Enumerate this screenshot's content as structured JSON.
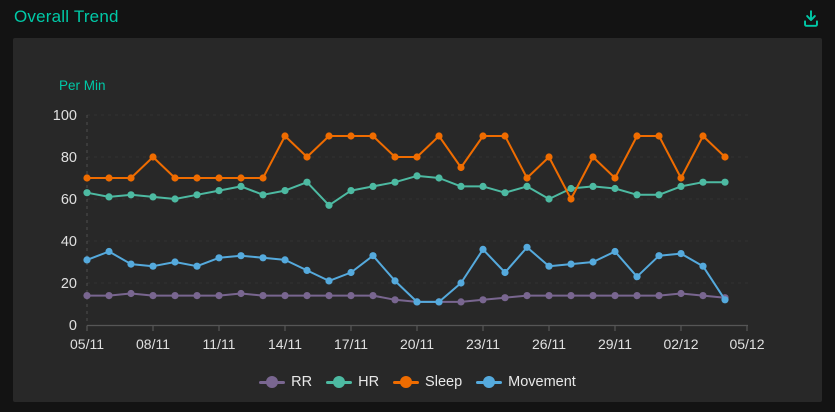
{
  "header": {
    "title": "Overall Trend"
  },
  "colors": {
    "accent": "#00c9a7",
    "background": "#131313",
    "panel": "#282828",
    "axis_line": "#565656",
    "axis_text": "#e0e0e0",
    "legend_text": "#e8e8e8"
  },
  "chart_data": {
    "type": "line",
    "title": "Overall Trend",
    "y_axis_name": "Per Min",
    "x": [
      "05/11",
      "06/11",
      "07/11",
      "08/11",
      "09/11",
      "10/11",
      "11/11",
      "12/11",
      "13/11",
      "14/11",
      "15/11",
      "16/11",
      "17/11",
      "18/11",
      "19/11",
      "20/11",
      "21/11",
      "22/11",
      "23/11",
      "24/11",
      "25/11",
      "26/11",
      "27/11",
      "28/11",
      "29/11",
      "30/11",
      "01/12",
      "02/12",
      "03/12",
      "04/12"
    ],
    "x_tick_labels": [
      "05/11",
      "08/11",
      "11/11",
      "14/11",
      "17/11",
      "20/11",
      "23/11",
      "26/11",
      "29/11",
      "02/12",
      "05/12"
    ],
    "y_ticks": [
      0,
      20,
      40,
      60,
      80,
      100
    ],
    "ylim": [
      0,
      100
    ],
    "grid": "faint dashed horizontal lines, dashed vertical axis at first category",
    "legend_position": "bottom",
    "series": [
      {
        "name": "RR",
        "color": "#796690",
        "values": [
          14,
          14,
          15,
          14,
          14,
          14,
          14,
          15,
          14,
          14,
          14,
          14,
          14,
          14,
          12,
          11,
          11,
          11,
          12,
          13,
          14,
          14,
          14,
          14,
          14,
          14,
          14,
          15,
          14,
          13
        ]
      },
      {
        "name": "HR",
        "color": "#4dbaa2",
        "values": [
          63,
          61,
          62,
          61,
          60,
          62,
          64,
          66,
          62,
          64,
          68,
          57,
          64,
          66,
          68,
          71,
          70,
          66,
          66,
          63,
          66,
          60,
          65,
          66,
          65,
          62,
          62,
          66,
          68,
          68
        ]
      },
      {
        "name": "Sleep",
        "color": "#ef6c00",
        "values": [
          70,
          70,
          70,
          80,
          70,
          70,
          70,
          70,
          70,
          90,
          80,
          90,
          90,
          90,
          80,
          80,
          90,
          75,
          90,
          90,
          70,
          80,
          60,
          80,
          70,
          90,
          90,
          70,
          90,
          80
        ]
      },
      {
        "name": "Movement",
        "color": "#55aadd",
        "values": [
          31,
          35,
          29,
          28,
          30,
          28,
          32,
          33,
          32,
          31,
          26,
          21,
          25,
          33,
          21,
          11,
          11,
          20,
          36,
          25,
          37,
          28,
          29,
          30,
          35,
          23,
          33,
          34,
          28,
          12
        ]
      }
    ]
  }
}
